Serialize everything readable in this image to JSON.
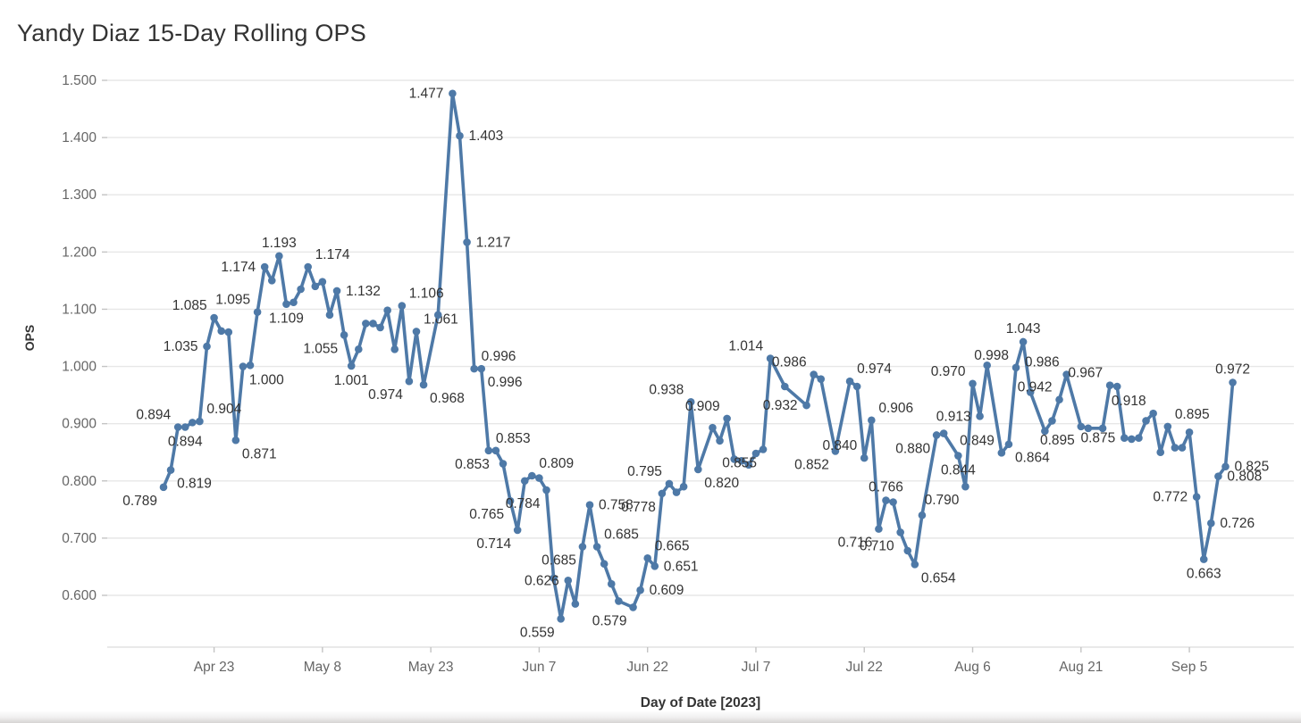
{
  "title": "Yandy Diaz 15-Day Rolling OPS",
  "y_axis": {
    "label": "OPS",
    "tick_labels": [
      "1.500",
      "1.400",
      "1.300",
      "1.200",
      "1.100",
      "1.000",
      "0.900",
      "0.800",
      "0.700",
      "0.600"
    ],
    "min": 0.6,
    "max": 1.5
  },
  "x_axis": {
    "label": "Day of Date [2023]",
    "ticks": [
      {
        "label": "Apr 23",
        "day": 7
      },
      {
        "label": "May 8",
        "day": 22
      },
      {
        "label": "May 23",
        "day": 37
      },
      {
        "label": "Jun 7",
        "day": 52
      },
      {
        "label": "Jun 22",
        "day": 67
      },
      {
        "label": "Jul 7",
        "day": 82
      },
      {
        "label": "Jul 22",
        "day": 97
      },
      {
        "label": "Aug 6",
        "day": 112
      },
      {
        "label": "Aug 21",
        "day": 127
      },
      {
        "label": "Sep 5",
        "day": 142
      }
    ]
  },
  "colors": {
    "line": "#4e79a7",
    "marker": "#4e79a7",
    "data_label": "#333333",
    "tick_label": "#666666",
    "grid": "#e7e7e7",
    "axis_rule": "#dcdcdc",
    "tick_mark": "#c4c4c4",
    "title": "#333333"
  },
  "chart_data": {
    "type": "line",
    "title": "Yandy Diaz 15-Day Rolling OPS",
    "xlabel": "Day of Date [2023]",
    "ylabel": "OPS",
    "ylim": [
      0.6,
      1.5
    ],
    "grid": "horizontal",
    "series_name": "15-Day Rolling OPS",
    "points": [
      {
        "day": 0,
        "date": "Apr 16",
        "ops": 0.789,
        "pos": "bl"
      },
      {
        "day": 1,
        "date": "Apr 17",
        "ops": 0.819,
        "pos": "br"
      },
      {
        "day": 2,
        "date": "Apr 18",
        "ops": 0.894,
        "pos": "tl"
      },
      {
        "day": 3,
        "date": "Apr 19",
        "ops": 0.894,
        "pos": "b"
      },
      {
        "day": 4,
        "date": "Apr 20",
        "ops": 0.902,
        "pos": null
      },
      {
        "day": 5,
        "date": "Apr 21",
        "ops": 0.904,
        "pos": "tr"
      },
      {
        "day": 6,
        "date": "Apr 22",
        "ops": 1.035,
        "pos": "l"
      },
      {
        "day": 7,
        "date": "Apr 23",
        "ops": 1.085,
        "pos": "tl"
      },
      {
        "day": 8,
        "date": "Apr 24",
        "ops": 1.062,
        "pos": null
      },
      {
        "day": 9,
        "date": "Apr 25",
        "ops": 1.06,
        "pos": null
      },
      {
        "day": 10,
        "date": "Apr 26",
        "ops": 0.871,
        "pos": "br"
      },
      {
        "day": 11,
        "date": "Apr 27",
        "ops": 1.0,
        "pos": "br"
      },
      {
        "day": 12,
        "date": "Apr 28",
        "ops": 1.002,
        "pos": null
      },
      {
        "day": 13,
        "date": "Apr 29",
        "ops": 1.095,
        "pos": "tl"
      },
      {
        "day": 14,
        "date": "Apr 30",
        "ops": 1.174,
        "pos": "l"
      },
      {
        "day": 15,
        "date": "May 1",
        "ops": 1.15,
        "pos": null
      },
      {
        "day": 16,
        "date": "May 2",
        "ops": 1.193,
        "pos": "t"
      },
      {
        "day": 17,
        "date": "May 3",
        "ops": 1.109,
        "pos": "b"
      },
      {
        "day": 18,
        "date": "May 4",
        "ops": 1.112,
        "pos": null
      },
      {
        "day": 19,
        "date": "May 5",
        "ops": 1.135,
        "pos": null
      },
      {
        "day": 20,
        "date": "May 6",
        "ops": 1.174,
        "pos": "tr"
      },
      {
        "day": 21,
        "date": "May 7",
        "ops": 1.14,
        "pos": null
      },
      {
        "day": 22,
        "date": "May 8",
        "ops": 1.148,
        "pos": null
      },
      {
        "day": 23,
        "date": "May 9",
        "ops": 1.09,
        "pos": null
      },
      {
        "day": 24,
        "date": "May 10",
        "ops": 1.132,
        "pos": "r"
      },
      {
        "day": 25,
        "date": "May 11",
        "ops": 1.055,
        "pos": "bl"
      },
      {
        "day": 26,
        "date": "May 12",
        "ops": 1.001,
        "pos": "b"
      },
      {
        "day": 27,
        "date": "May 13",
        "ops": 1.03,
        "pos": null
      },
      {
        "day": 28,
        "date": "May 14",
        "ops": 1.075,
        "pos": null
      },
      {
        "day": 29,
        "date": "May 15",
        "ops": 1.075,
        "pos": null
      },
      {
        "day": 30,
        "date": "May 16",
        "ops": 1.068,
        "pos": null
      },
      {
        "day": 31,
        "date": "May 17",
        "ops": 1.098,
        "pos": null
      },
      {
        "day": 32,
        "date": "May 18",
        "ops": 1.03,
        "pos": null
      },
      {
        "day": 33,
        "date": "May 19",
        "ops": 1.106,
        "pos": "tr"
      },
      {
        "day": 34,
        "date": "May 20",
        "ops": 0.974,
        "pos": "bl"
      },
      {
        "day": 35,
        "date": "May 21",
        "ops": 1.061,
        "pos": "tr"
      },
      {
        "day": 36,
        "date": "May 22",
        "ops": 0.968,
        "pos": "br"
      },
      {
        "day": 38,
        "date": "May 24",
        "ops": 1.09,
        "pos": null
      },
      {
        "day": 40,
        "date": "May 26",
        "ops": 1.477,
        "pos": "l"
      },
      {
        "day": 41,
        "date": "May 27",
        "ops": 1.403,
        "pos": "r"
      },
      {
        "day": 42,
        "date": "May 28",
        "ops": 1.217,
        "pos": "r"
      },
      {
        "day": 43,
        "date": "May 29",
        "ops": 0.996,
        "pos": "tr"
      },
      {
        "day": 44,
        "date": "May 30",
        "ops": 0.996,
        "pos": "br"
      },
      {
        "day": 45,
        "date": "May 31",
        "ops": 0.853,
        "pos": "tr"
      },
      {
        "day": 46,
        "date": "Jun 1",
        "ops": 0.853,
        "pos": "bl"
      },
      {
        "day": 47,
        "date": "Jun 2",
        "ops": 0.83,
        "pos": null
      },
      {
        "day": 48,
        "date": "Jun 3",
        "ops": 0.765,
        "pos": "bl"
      },
      {
        "day": 49,
        "date": "Jun 4",
        "ops": 0.714,
        "pos": "bl"
      },
      {
        "day": 50,
        "date": "Jun 5",
        "ops": 0.8,
        "pos": null
      },
      {
        "day": 51,
        "date": "Jun 6",
        "ops": 0.809,
        "pos": "tr"
      },
      {
        "day": 52,
        "date": "Jun 7",
        "ops": 0.805,
        "pos": null
      },
      {
        "day": 53,
        "date": "Jun 8",
        "ops": 0.784,
        "pos": "bl"
      },
      {
        "day": 54,
        "date": "Jun 9",
        "ops": 0.63,
        "pos": null
      },
      {
        "day": 55,
        "date": "Jun 10",
        "ops": 0.559,
        "pos": "bl"
      },
      {
        "day": 56,
        "date": "Jun 11",
        "ops": 0.626,
        "pos": "l"
      },
      {
        "day": 57,
        "date": "Jun 12",
        "ops": 0.585,
        "pos": null
      },
      {
        "day": 58,
        "date": "Jun 13",
        "ops": 0.685,
        "pos": "bl"
      },
      {
        "day": 59,
        "date": "Jun 14",
        "ops": 0.758,
        "pos": "r"
      },
      {
        "day": 60,
        "date": "Jun 15",
        "ops": 0.685,
        "pos": "tr"
      },
      {
        "day": 61,
        "date": "Jun 16",
        "ops": 0.655,
        "pos": null
      },
      {
        "day": 62,
        "date": "Jun 17",
        "ops": 0.62,
        "pos": null
      },
      {
        "day": 63,
        "date": "Jun 18",
        "ops": 0.59,
        "pos": null
      },
      {
        "day": 65,
        "date": "Jun 20",
        "ops": 0.579,
        "pos": "bl"
      },
      {
        "day": 66,
        "date": "Jun 21",
        "ops": 0.609,
        "pos": "r"
      },
      {
        "day": 67,
        "date": "Jun 22",
        "ops": 0.665,
        "pos": "tr"
      },
      {
        "day": 68,
        "date": "Jun 23",
        "ops": 0.651,
        "pos": "r"
      },
      {
        "day": 69,
        "date": "Jun 24",
        "ops": 0.778,
        "pos": "bl"
      },
      {
        "day": 70,
        "date": "Jun 25",
        "ops": 0.795,
        "pos": "tl"
      },
      {
        "day": 71,
        "date": "Jun 26",
        "ops": 0.78,
        "pos": null
      },
      {
        "day": 72,
        "date": "Jun 27",
        "ops": 0.79,
        "pos": null
      },
      {
        "day": 73,
        "date": "Jun 28",
        "ops": 0.938,
        "pos": "tl"
      },
      {
        "day": 74,
        "date": "Jun 29",
        "ops": 0.82,
        "pos": "br"
      },
      {
        "day": 76,
        "date": "Jul 1",
        "ops": 0.893,
        "pos": null
      },
      {
        "day": 77,
        "date": "Jul 2",
        "ops": 0.87,
        "pos": null
      },
      {
        "day": 78,
        "date": "Jul 3",
        "ops": 0.909,
        "pos": "tl"
      },
      {
        "day": 79,
        "date": "Jul 4",
        "ops": 0.838,
        "pos": null
      },
      {
        "day": 80,
        "date": "Jul 5",
        "ops": 0.835,
        "pos": null
      },
      {
        "day": 81,
        "date": "Jul 6",
        "ops": 0.828,
        "pos": null
      },
      {
        "day": 82,
        "date": "Jul 7",
        "ops": 0.848,
        "pos": null
      },
      {
        "day": 83,
        "date": "Jul 8",
        "ops": 0.855,
        "pos": "bl"
      },
      {
        "day": 84,
        "date": "Jul 9",
        "ops": 1.014,
        "pos": "tl"
      },
      {
        "day": 86,
        "date": "Jul 11",
        "ops": 0.965,
        "pos": null
      },
      {
        "day": 89,
        "date": "Jul 14",
        "ops": 0.932,
        "pos": "l"
      },
      {
        "day": 90,
        "date": "Jul 15",
        "ops": 0.986,
        "pos": "tl"
      },
      {
        "day": 91,
        "date": "Jul 16",
        "ops": 0.978,
        "pos": null
      },
      {
        "day": 93,
        "date": "Jul 18",
        "ops": 0.852,
        "pos": "bl"
      },
      {
        "day": 95,
        "date": "Jul 20",
        "ops": 0.974,
        "pos": "tr"
      },
      {
        "day": 96,
        "date": "Jul 21",
        "ops": 0.965,
        "pos": null
      },
      {
        "day": 97,
        "date": "Jul 22",
        "ops": 0.84,
        "pos": "tl"
      },
      {
        "day": 98,
        "date": "Jul 23",
        "ops": 0.906,
        "pos": "tr"
      },
      {
        "day": 99,
        "date": "Jul 24",
        "ops": 0.716,
        "pos": "bl"
      },
      {
        "day": 100,
        "date": "Jul 25",
        "ops": 0.766,
        "pos": "t"
      },
      {
        "day": 101,
        "date": "Jul 26",
        "ops": 0.763,
        "pos": null
      },
      {
        "day": 102,
        "date": "Jul 27",
        "ops": 0.71,
        "pos": "bl"
      },
      {
        "day": 103,
        "date": "Jul 28",
        "ops": 0.678,
        "pos": null
      },
      {
        "day": 104,
        "date": "Jul 29",
        "ops": 0.654,
        "pos": "br"
      },
      {
        "day": 105,
        "date": "Jul 30",
        "ops": 0.74,
        "pos": null
      },
      {
        "day": 107,
        "date": "Aug 1",
        "ops": 0.88,
        "pos": "bl"
      },
      {
        "day": 108,
        "date": "Aug 2",
        "ops": 0.883,
        "pos": null
      },
      {
        "day": 110,
        "date": "Aug 4",
        "ops": 0.844,
        "pos": "b"
      },
      {
        "day": 111,
        "date": "Aug 5",
        "ops": 0.79,
        "pos": "bl"
      },
      {
        "day": 112,
        "date": "Aug 6",
        "ops": 0.97,
        "pos": "tl"
      },
      {
        "day": 113,
        "date": "Aug 7",
        "ops": 0.913,
        "pos": "l"
      },
      {
        "day": 114,
        "date": "Aug 8",
        "ops": 1.002,
        "pos": null
      },
      {
        "day": 116,
        "date": "Aug 10",
        "ops": 0.849,
        "pos": "tl"
      },
      {
        "day": 117,
        "date": "Aug 11",
        "ops": 0.864,
        "pos": "br"
      },
      {
        "day": 118,
        "date": "Aug 12",
        "ops": 0.998,
        "pos": "tl"
      },
      {
        "day": 119,
        "date": "Aug 13",
        "ops": 1.043,
        "pos": "t"
      },
      {
        "day": 120,
        "date": "Aug 14",
        "ops": 0.955,
        "pos": null
      },
      {
        "day": 122,
        "date": "Aug 16",
        "ops": 0.887,
        "pos": null
      },
      {
        "day": 123,
        "date": "Aug 17",
        "ops": 0.905,
        "pos": null
      },
      {
        "day": 124,
        "date": "Aug 18",
        "ops": 0.942,
        "pos": "tl"
      },
      {
        "day": 125,
        "date": "Aug 19",
        "ops": 0.986,
        "pos": "tl"
      },
      {
        "day": 127,
        "date": "Aug 21",
        "ops": 0.895,
        "pos": "bl"
      },
      {
        "day": 128,
        "date": "Aug 22",
        "ops": 0.892,
        "pos": null
      },
      {
        "day": 130,
        "date": "Aug 24",
        "ops": 0.892,
        "pos": null
      },
      {
        "day": 131,
        "date": "Aug 25",
        "ops": 0.967,
        "pos": "tl"
      },
      {
        "day": 132,
        "date": "Aug 26",
        "ops": 0.965,
        "pos": null
      },
      {
        "day": 133,
        "date": "Aug 27",
        "ops": 0.875,
        "pos": "l"
      },
      {
        "day": 134,
        "date": "Aug 28",
        "ops": 0.873,
        "pos": null
      },
      {
        "day": 135,
        "date": "Aug 29",
        "ops": 0.875,
        "pos": null
      },
      {
        "day": 136,
        "date": "Aug 30",
        "ops": 0.905,
        "pos": null
      },
      {
        "day": 137,
        "date": "Aug 31",
        "ops": 0.918,
        "pos": "tl"
      },
      {
        "day": 138,
        "date": "Sep 1",
        "ops": 0.85,
        "pos": null
      },
      {
        "day": 139,
        "date": "Sep 2",
        "ops": 0.895,
        "pos": "tr"
      },
      {
        "day": 140,
        "date": "Sep 3",
        "ops": 0.858,
        "pos": null
      },
      {
        "day": 141,
        "date": "Sep 4",
        "ops": 0.858,
        "pos": null
      },
      {
        "day": 142,
        "date": "Sep 5",
        "ops": 0.885,
        "pos": null
      },
      {
        "day": 143,
        "date": "Sep 6",
        "ops": 0.772,
        "pos": "l"
      },
      {
        "day": 144,
        "date": "Sep 7",
        "ops": 0.663,
        "pos": "b"
      },
      {
        "day": 145,
        "date": "Sep 8",
        "ops": 0.726,
        "pos": "r"
      },
      {
        "day": 146,
        "date": "Sep 9",
        "ops": 0.808,
        "pos": "r"
      },
      {
        "day": 147,
        "date": "Sep 10",
        "ops": 0.825,
        "pos": "r"
      },
      {
        "day": 148,
        "date": "Sep 11",
        "ops": 0.972,
        "pos": "t"
      }
    ]
  }
}
